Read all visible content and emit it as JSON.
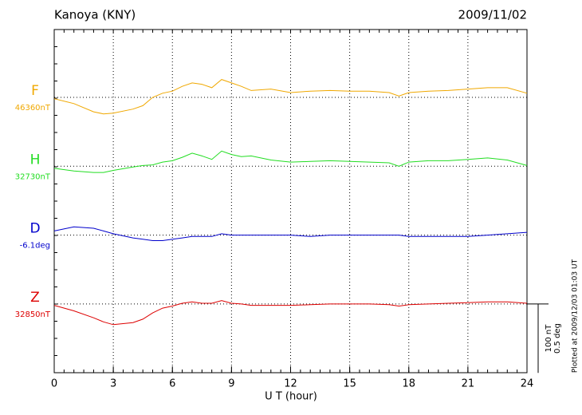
{
  "chart_data": {
    "type": "line",
    "title": "Kanoya (KNY)",
    "date": "2009/11/02",
    "xlabel": "U T (hour)",
    "footnote": "Plotted at 2009/12/03 01:03 UT",
    "xlim": [
      0,
      24
    ],
    "xticks": [
      0,
      3,
      6,
      9,
      12,
      15,
      18,
      21,
      24
    ],
    "grid": true,
    "scale_bar": [
      {
        "value": 100,
        "label": "100 nT"
      },
      {
        "value": 0.5,
        "label": "0.5 deg"
      }
    ],
    "x": [
      0,
      1,
      2,
      2.5,
      3,
      4,
      4.5,
      5,
      5.5,
      6,
      6.5,
      7,
      7.5,
      8,
      8.5,
      9,
      9.5,
      10,
      11,
      12,
      13,
      14,
      15,
      16,
      17,
      17.5,
      18,
      19,
      20,
      21,
      22,
      23,
      24
    ],
    "series": [
      {
        "name": "F",
        "color": "#f0a800",
        "baseline": {
          "value": 46360,
          "label": "46360nT"
        },
        "values": [
          46358,
          46351,
          46339,
          46336,
          46337,
          46343,
          46348,
          46360,
          46366,
          46369,
          46376,
          46381,
          46379,
          46374,
          46386,
          46381,
          46376,
          46370,
          46372,
          46367,
          46369,
          46370,
          46369,
          46369,
          46367,
          46362,
          46367,
          46369,
          46370,
          46372,
          46374,
          46374,
          46366
        ]
      },
      {
        "name": "H",
        "color": "#22dd22",
        "baseline": {
          "value": 32730,
          "label": "32730nT"
        },
        "values": [
          32727,
          32723,
          32721,
          32721,
          32724,
          32729,
          32731,
          32732,
          32736,
          32738,
          32743,
          32749,
          32745,
          32740,
          32752,
          32747,
          32744,
          32745,
          32739,
          32736,
          32737,
          32738,
          32737,
          32736,
          32735,
          32730,
          32736,
          32738,
          32738,
          32740,
          32742,
          32739,
          32731
        ]
      },
      {
        "name": "D",
        "color": "#0000cc",
        "axis": "y2",
        "baseline": {
          "value": -6.1,
          "label": "-6.1deg"
        },
        "values": [
          -6.07,
          -6.04,
          -6.05,
          -6.07,
          -6.09,
          -6.12,
          -6.13,
          -6.14,
          -6.14,
          -6.13,
          -6.12,
          -6.11,
          -6.11,
          -6.11,
          -6.09,
          -6.1,
          -6.1,
          -6.1,
          -6.1,
          -6.1,
          -6.11,
          -6.1,
          -6.1,
          -6.1,
          -6.1,
          -6.1,
          -6.11,
          -6.11,
          -6.11,
          -6.11,
          -6.1,
          -6.09,
          -6.08
        ]
      },
      {
        "name": "Z",
        "color": "#dd0000",
        "baseline": {
          "value": 32850,
          "label": "32850nT"
        },
        "values": [
          32848,
          32840,
          32830,
          32824,
          32820,
          32823,
          32828,
          32837,
          32844,
          32847,
          32851,
          32853,
          32851,
          32851,
          32855,
          32851,
          32850,
          32848,
          32848,
          32848,
          32849,
          32850,
          32850,
          32850,
          32849,
          32847,
          32849,
          32850,
          32851,
          32852,
          32853,
          32853,
          32851
        ]
      }
    ]
  }
}
